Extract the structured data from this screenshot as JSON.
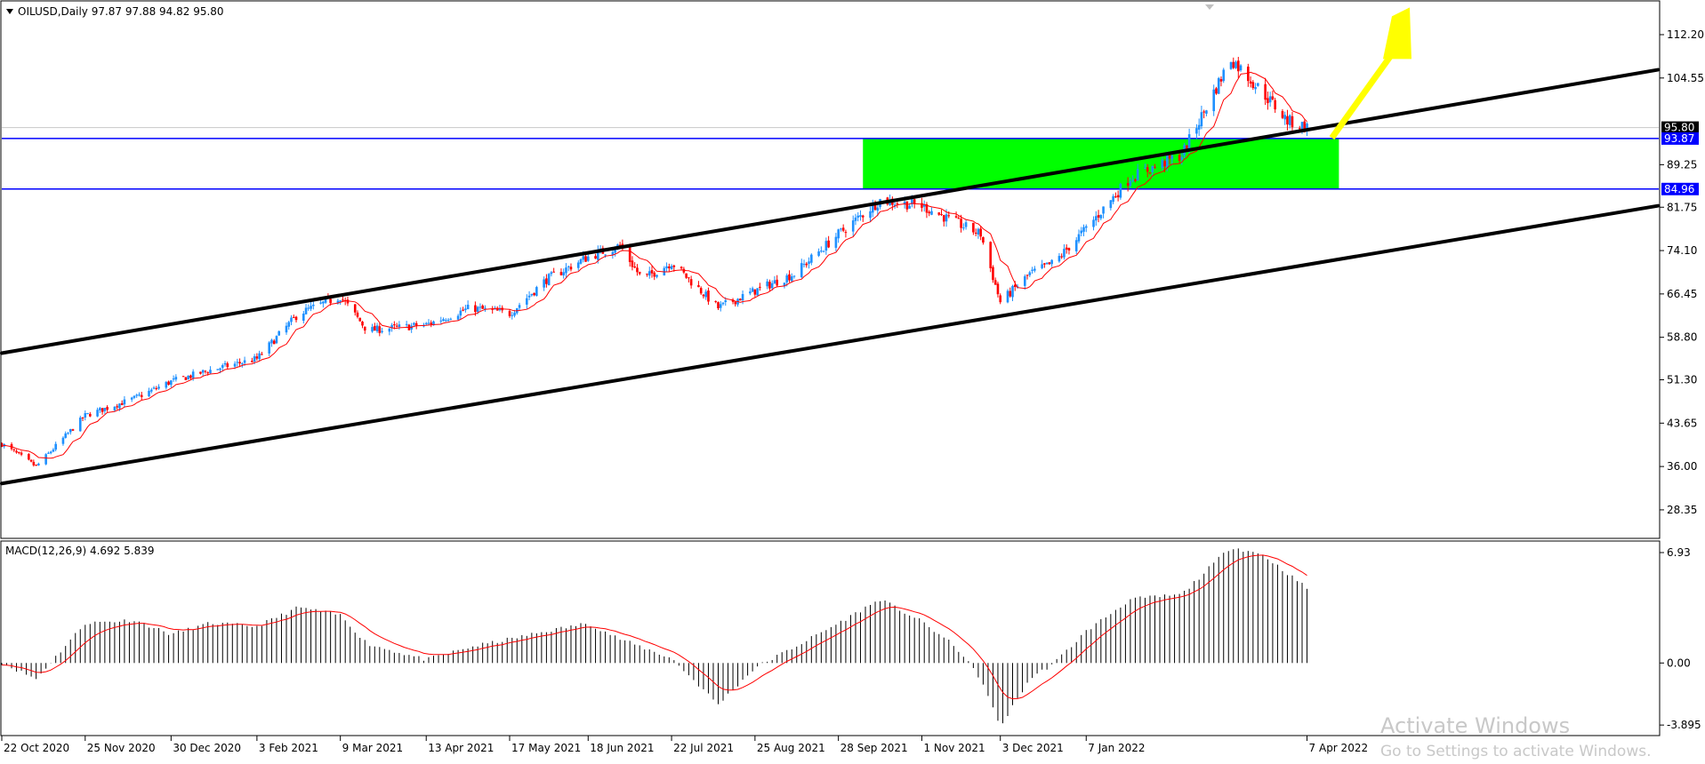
{
  "header": {
    "symbol_line": "OILUSD,Daily  97.87 97.88 94.82 95.80",
    "macd_line": "MACD(12,26,9) 4.692 5.839"
  },
  "chart_data": [
    {
      "type": "candlestick",
      "title": "OILUSD,Daily",
      "ohlc_last": {
        "open": 97.87,
        "high": 97.88,
        "low": 94.82,
        "close": 95.8
      },
      "y_ticks": [
        "112.20",
        "104.55",
        "89.25",
        "81.75",
        "74.10",
        "66.45",
        "58.80",
        "51.30",
        "43.65",
        "36.00",
        "28.35"
      ],
      "ylim": [
        26.3,
        118
      ],
      "x_ticks": [
        "22 Oct 2020",
        "25 Nov 2020",
        "30 Dec 2020",
        "3 Feb 2021",
        "9 Mar 2021",
        "13 Apr 2021",
        "17 May 2021",
        "18 Jun 2021",
        "22 Jul 2021",
        "25 Aug 2021",
        "28 Sep 2021",
        "1 Nov 2021",
        "3 Dec 2021",
        "7 Jan 2022",
        "7 Apr 2022"
      ],
      "price_path": [
        [
          "22 Oct 2020",
          40
        ],
        [
          "5 Nov 2020",
          36
        ],
        [
          "25 Nov 2020",
          45
        ],
        [
          "15 Dec 2020",
          48
        ],
        [
          "30 Dec 2020",
          51
        ],
        [
          "15 Jan 2021",
          53
        ],
        [
          "3 Feb 2021",
          55
        ],
        [
          "20 Feb 2021",
          63
        ],
        [
          "9 Mar 2021",
          66
        ],
        [
          "20 Mar 2021",
          60
        ],
        [
          "13 Apr 2021",
          61
        ],
        [
          "1 May 2021",
          64
        ],
        [
          "17 May 2021",
          63
        ],
        [
          "1 Jun 2021",
          69
        ],
        [
          "18 Jun 2021",
          73
        ],
        [
          "1 Jul 2021",
          75
        ],
        [
          "10 Jul 2021",
          69
        ],
        [
          "22 Jul 2021",
          72
        ],
        [
          "10 Aug 2021",
          64
        ],
        [
          "25 Aug 2021",
          67
        ],
        [
          "10 Sep 2021",
          70
        ],
        [
          "28 Sep 2021",
          77
        ],
        [
          "15 Oct 2021",
          83
        ],
        [
          "1 Nov 2021",
          82
        ],
        [
          "15 Nov 2021",
          79
        ],
        [
          "25 Nov 2021",
          77
        ],
        [
          "3 Dec 2021",
          65
        ],
        [
          "15 Dec 2021",
          70
        ],
        [
          "25 Dec 2021",
          72
        ],
        [
          "7 Jan 2022",
          78
        ],
        [
          "25 Jan 2022",
          87
        ],
        [
          "15 Feb 2022",
          91
        ],
        [
          "7 Mar 2022",
          108
        ],
        [
          "20 Mar 2022",
          102
        ],
        [
          "30 Mar 2022",
          97
        ],
        [
          "7 Apr 2022",
          95.8
        ]
      ],
      "horizontal_levels": [
        {
          "value": 93.87,
          "label": "93.87",
          "color": "#0000ff"
        },
        {
          "value": 84.96,
          "label": "84.96",
          "color": "#0000ff"
        }
      ],
      "current_price": {
        "value": 95.8,
        "label": "95.80"
      },
      "channel_lines": [
        {
          "name": "upper",
          "from": [
            "22 Oct 2020",
            56
          ],
          "to": [
            "28 Aug 2022",
            106
          ]
        },
        {
          "name": "lower",
          "from": [
            "22 Oct 2020",
            33
          ],
          "to": [
            "28 Aug 2022",
            82
          ]
        }
      ],
      "zone": {
        "from": "8 Oct 2021",
        "to": "20 Apr 2022",
        "low": 84.96,
        "high": 93.87,
        "color": "#00ff00"
      },
      "arrow": {
        "from": [
          "7 Apr 2022",
          94
        ],
        "to": [
          "30 Apr 2022",
          117
        ],
        "color": "#ffff00"
      },
      "colors": {
        "up": "#1e90ff",
        "down": "#ff0000",
        "ma": "#ff0000",
        "channel": "#000000"
      }
    },
    {
      "type": "bar",
      "title": "MACD(12,26,9) 4.692 5.839",
      "y_ticks": [
        "6.93",
        "0.00",
        "-3.895"
      ],
      "ylim": [
        -4.5,
        7.6
      ],
      "macd_last": 4.692,
      "signal_last": 5.839,
      "macd_path": [
        [
          "22 Oct 2020",
          0
        ],
        [
          "5 Nov 2020",
          -1
        ],
        [
          "25 Nov 2020",
          2.5
        ],
        [
          "15 Dec 2020",
          2.7
        ],
        [
          "30 Dec 2020",
          1.8
        ],
        [
          "15 Jan 2021",
          2.5
        ],
        [
          "3 Feb 2021",
          2.3
        ],
        [
          "20 Feb 2021",
          3.5
        ],
        [
          "9 Mar 2021",
          3.0
        ],
        [
          "20 Mar 2021",
          1.2
        ],
        [
          "13 Apr 2021",
          0.2
        ],
        [
          "1 May 2021",
          1.0
        ],
        [
          "17 May 2021",
          1.5
        ],
        [
          "1 Jun 2021",
          2.0
        ],
        [
          "18 Jun 2021",
          2.5
        ],
        [
          "1 Jul 2021",
          1.5
        ],
        [
          "22 Jul 2021",
          0.3
        ],
        [
          "10 Aug 2021",
          -2.6
        ],
        [
          "25 Aug 2021",
          -0.3
        ],
        [
          "10 Sep 2021",
          1.0
        ],
        [
          "28 Sep 2021",
          2.5
        ],
        [
          "15 Oct 2021",
          4.0
        ],
        [
          "1 Nov 2021",
          2.6
        ],
        [
          "15 Nov 2021",
          1.0
        ],
        [
          "25 Nov 2021",
          -1.0
        ],
        [
          "3 Dec 2021",
          -4.0
        ],
        [
          "15 Dec 2021",
          -1.0
        ],
        [
          "25 Dec 2021",
          0.0
        ],
        [
          "7 Jan 2022",
          2.0
        ],
        [
          "25 Jan 2022",
          4.0
        ],
        [
          "15 Feb 2022",
          4.3
        ],
        [
          "7 Mar 2022",
          7.3
        ],
        [
          "20 Mar 2022",
          6.8
        ],
        [
          "7 Apr 2022",
          4.692
        ]
      ],
      "colors": {
        "histogram": "#000000",
        "signal": "#ff0000"
      }
    }
  ],
  "watermark": {
    "line1": "Activate Windows",
    "line2": "Go to Settings to activate Windows."
  }
}
